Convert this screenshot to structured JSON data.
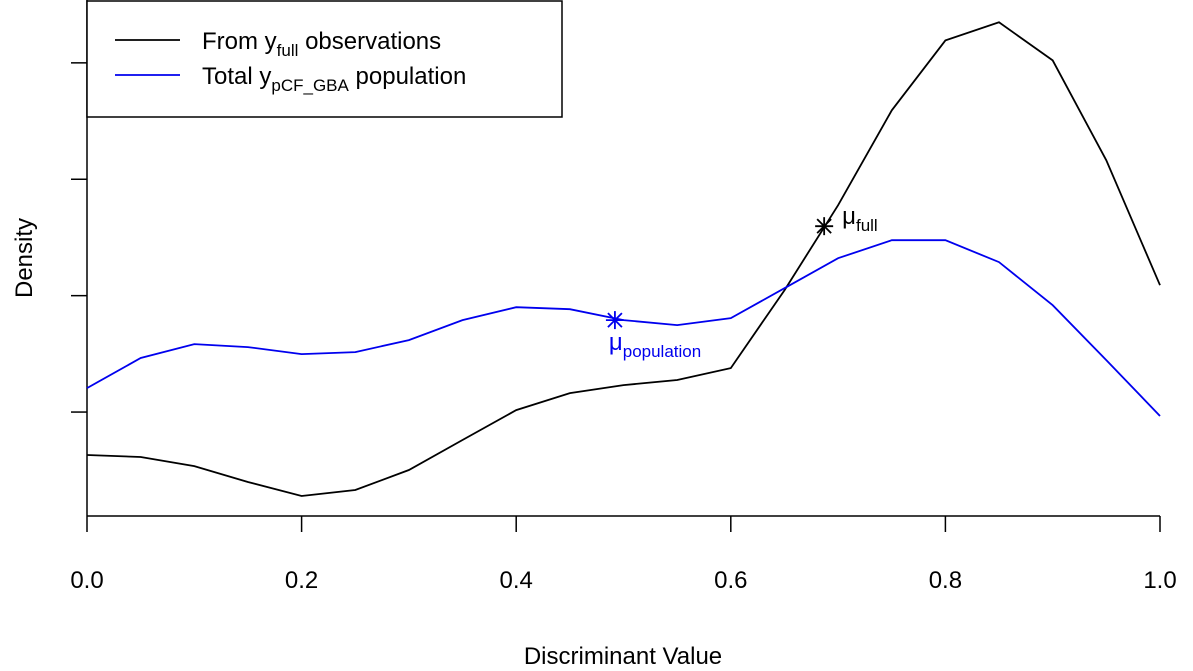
{
  "chart_data": {
    "type": "line",
    "xlabel": "Discriminant Value",
    "ylabel": "Density",
    "x": [
      0,
      0.05,
      0.1,
      0.15,
      0.2,
      0.25,
      0.3,
      0.35,
      0.4,
      0.45,
      0.5,
      0.55,
      0.6,
      0.65,
      0.7,
      0.75,
      0.8,
      0.85,
      0.9,
      0.95,
      1.0
    ],
    "series": [
      {
        "name": [
          "From y",
          "full",
          " observations"
        ],
        "color": "#000000",
        "values": [
          0.631,
          0.614,
          0.536,
          0.399,
          0.279,
          0.33,
          0.502,
          0.76,
          1.017,
          1.163,
          1.232,
          1.275,
          1.378,
          2.047,
          2.777,
          3.592,
          4.193,
          4.348,
          4.021,
          3.163,
          2.09
        ]
      },
      {
        "name": [
          "Total y",
          "pCF_GBA",
          " population"
        ],
        "color": "#0000ee",
        "values": [
          1.206,
          1.464,
          1.584,
          1.558,
          1.498,
          1.515,
          1.618,
          1.79,
          1.901,
          1.884,
          1.79,
          1.747,
          1.807,
          2.064,
          2.322,
          2.476,
          2.476,
          2.288,
          1.918,
          1.446,
          0.966
        ]
      }
    ],
    "annotations": [
      {
        "text": [
          "μ",
          "full"
        ],
        "x": 0.687,
        "y": 2.597,
        "color": "#000000",
        "position": "right"
      },
      {
        "text": [
          "μ",
          "population"
        ],
        "x": 0.492,
        "y": 1.79,
        "color": "#0000ee",
        "position": "below"
      }
    ],
    "xlim": [
      0,
      1
    ],
    "ylim": [
      0.107,
      4.54
    ],
    "xticks": [
      {
        "value": 0,
        "label": "0.0"
      },
      0.2,
      0.4,
      0.6,
      0.8,
      {
        "value": 1,
        "label": "1.0"
      }
    ],
    "yticks": [
      1,
      2,
      3,
      4
    ],
    "legend": "top-left"
  }
}
